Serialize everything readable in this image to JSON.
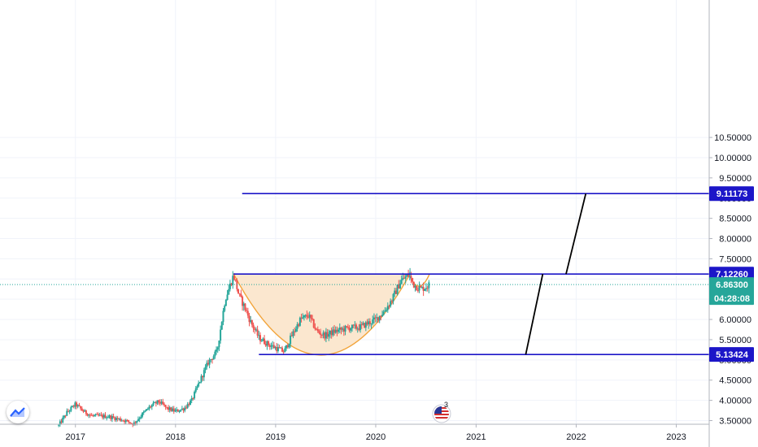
{
  "chart_data": {
    "type": "candlestick",
    "title": "",
    "x_range": [
      "2016-04-01",
      "2023-05-01"
    ],
    "y_range": [
      3.4,
      10.75
    ],
    "x_ticks": [
      {
        "date": "2017-01-01",
        "label": "2017"
      },
      {
        "date": "2018-01-01",
        "label": "2018"
      },
      {
        "date": "2019-01-01",
        "label": "2019"
      },
      {
        "date": "2020-01-01",
        "label": "2020"
      },
      {
        "date": "2021-01-01",
        "label": "2021"
      },
      {
        "date": "2022-01-01",
        "label": "2022"
      },
      {
        "date": "2023-01-01",
        "label": "2023"
      }
    ],
    "y_ticks": [
      "3.50000",
      "4.00000",
      "4.50000",
      "5.00000",
      "5.50000",
      "6.00000",
      "6.50000",
      "7.00000",
      "7.50000",
      "8.00000",
      "8.50000",
      "9.00000",
      "9.50000",
      "10.00000",
      "10.50000"
    ],
    "price_path": [
      {
        "x": "2016-11-01",
        "y": 3.38
      },
      {
        "x": "2016-12-01",
        "y": 3.7
      },
      {
        "x": "2017-01-01",
        "y": 3.9
      },
      {
        "x": "2017-02-01",
        "y": 3.72
      },
      {
        "x": "2017-03-01",
        "y": 3.62
      },
      {
        "x": "2017-05-01",
        "y": 3.6
      },
      {
        "x": "2017-07-01",
        "y": 3.5
      },
      {
        "x": "2017-08-01",
        "y": 3.42
      },
      {
        "x": "2017-09-01",
        "y": 3.65
      },
      {
        "x": "2017-10-01",
        "y": 3.85
      },
      {
        "x": "2017-11-01",
        "y": 3.97
      },
      {
        "x": "2017-12-01",
        "y": 3.8
      },
      {
        "x": "2018-01-01",
        "y": 3.73
      },
      {
        "x": "2018-02-01",
        "y": 3.8
      },
      {
        "x": "2018-03-01",
        "y": 4.0
      },
      {
        "x": "2018-04-01",
        "y": 4.5
      },
      {
        "x": "2018-05-01",
        "y": 4.95
      },
      {
        "x": "2018-06-01",
        "y": 5.2
      },
      {
        "x": "2018-07-01",
        "y": 6.5
      },
      {
        "x": "2018-08-01",
        "y": 7.1
      },
      {
        "x": "2018-08-20",
        "y": 6.6
      },
      {
        "x": "2018-09-10",
        "y": 6.3
      },
      {
        "x": "2018-10-01",
        "y": 5.95
      },
      {
        "x": "2018-11-01",
        "y": 5.55
      },
      {
        "x": "2018-12-01",
        "y": 5.4
      },
      {
        "x": "2019-01-01",
        "y": 5.3
      },
      {
        "x": "2019-02-01",
        "y": 5.2
      },
      {
        "x": "2019-03-01",
        "y": 5.6
      },
      {
        "x": "2019-04-01",
        "y": 6.0
      },
      {
        "x": "2019-05-01",
        "y": 6.1
      },
      {
        "x": "2019-06-01",
        "y": 5.7
      },
      {
        "x": "2019-07-01",
        "y": 5.6
      },
      {
        "x": "2019-08-01",
        "y": 5.7
      },
      {
        "x": "2019-09-01",
        "y": 5.75
      },
      {
        "x": "2019-10-01",
        "y": 5.8
      },
      {
        "x": "2019-11-01",
        "y": 5.8
      },
      {
        "x": "2019-12-01",
        "y": 5.9
      },
      {
        "x": "2020-01-01",
        "y": 6.0
      },
      {
        "x": "2020-02-01",
        "y": 6.2
      },
      {
        "x": "2020-03-01",
        "y": 6.5
      },
      {
        "x": "2020-04-01",
        "y": 6.95
      },
      {
        "x": "2020-05-01",
        "y": 7.1
      },
      {
        "x": "2020-05-20",
        "y": 6.85
      },
      {
        "x": "2020-06-15",
        "y": 6.75
      },
      {
        "x": "2020-07-15",
        "y": 6.86
      }
    ],
    "volatility": 0.07,
    "spike_high": {
      "x": "2020-05-05",
      "y": 7.27
    },
    "levels": [
      {
        "name": "target",
        "value": 9.11173,
        "label": "9.11173",
        "x_start": "2018-09-01",
        "color": "#1c16c8"
      },
      {
        "name": "resistance",
        "value": 7.1226,
        "label": "7.12260",
        "x_start": "2018-08-01",
        "color": "#1c16c8"
      },
      {
        "name": "support",
        "value": 5.13424,
        "label": "5.13424",
        "x_start": "2018-11-01",
        "color": "#1c16c8"
      }
    ],
    "current_price": {
      "value": 6.863,
      "label": "6.86300",
      "countdown": "04:28:08",
      "color": "#26a69a"
    },
    "cup_shape": {
      "start": {
        "x": "2018-08-01",
        "y": 7.1226
      },
      "bottom": {
        "x": "2019-06-15",
        "y": 5.12
      },
      "end": {
        "x": "2020-05-05",
        "y": 7.1226
      },
      "fill": "#fbe7cf",
      "stroke": "#f2a43a"
    },
    "handle_shape": {
      "points": [
        {
          "x": "2020-05-10",
          "y": 7.0
        },
        {
          "x": "2020-06-10",
          "y": 6.75
        },
        {
          "x": "2020-07-15",
          "y": 7.12
        }
      ],
      "stroke": "#f2a43a"
    },
    "projection_lines": [
      {
        "from": {
          "x": "2021-07-01",
          "y": 5.13424
        },
        "to": {
          "x": "2021-09-01",
          "y": 7.1226
        }
      },
      {
        "from": {
          "x": "2021-11-25",
          "y": 7.1226
        },
        "to": {
          "x": "2022-02-05",
          "y": 9.11173
        }
      }
    ],
    "colors": {
      "up": "#26a69a",
      "down": "#ef5350",
      "grid": "#f0f3fa",
      "level": "#1c16c8",
      "projection": "#000000"
    }
  },
  "icons": {
    "logo": "tradingview-logo-icon",
    "flag": "us-flag-event-icon"
  },
  "flag_badge": "3"
}
